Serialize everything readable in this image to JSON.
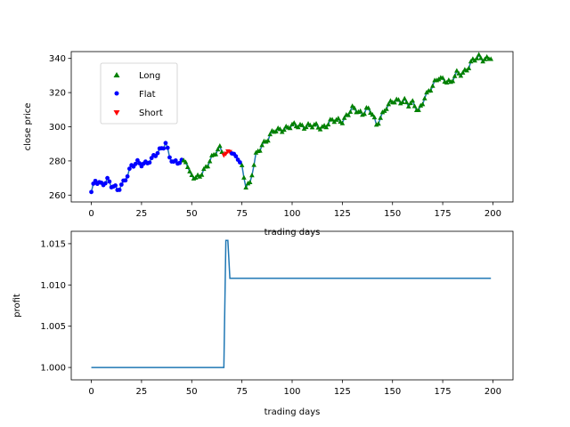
{
  "chart_data": [
    {
      "type": "scatter",
      "xlabel": "trading days",
      "ylabel": "close price",
      "xlim": [
        -10,
        210
      ],
      "ylim": [
        256,
        344
      ],
      "xticks": [
        0,
        25,
        50,
        75,
        100,
        125,
        150,
        175,
        200
      ],
      "yticks": [
        260,
        280,
        300,
        320,
        340
      ],
      "grid": false,
      "legend": "upper-left",
      "line_color": "#1f77b4",
      "anchors": [
        [
          0,
          261
        ],
        [
          2,
          268
        ],
        [
          5,
          267
        ],
        [
          8,
          269
        ],
        [
          10,
          265
        ],
        [
          13,
          263
        ],
        [
          17,
          270
        ],
        [
          20,
          276
        ],
        [
          23,
          279
        ],
        [
          27,
          279
        ],
        [
          30,
          280
        ],
        [
          33,
          285
        ],
        [
          37,
          291
        ],
        [
          39,
          282
        ],
        [
          41,
          278
        ],
        [
          44,
          280
        ],
        [
          47,
          281
        ],
        [
          49,
          272
        ],
        [
          52,
          269
        ],
        [
          56,
          275
        ],
        [
          60,
          281
        ],
        [
          64,
          288
        ],
        [
          67,
          284
        ],
        [
          69,
          286
        ],
        [
          71,
          282
        ],
        [
          73,
          282
        ],
        [
          75,
          277
        ],
        [
          77,
          266
        ],
        [
          79,
          266
        ],
        [
          82,
          283
        ],
        [
          85,
          290
        ],
        [
          88,
          293
        ],
        [
          91,
          297
        ],
        [
          95,
          299
        ],
        [
          100,
          300
        ],
        [
          105,
          301
        ],
        [
          110,
          300
        ],
        [
          115,
          300
        ],
        [
          120,
          303
        ],
        [
          125,
          304
        ],
        [
          130,
          310
        ],
        [
          135,
          308
        ],
        [
          137,
          311
        ],
        [
          140,
          307
        ],
        [
          142,
          300
        ],
        [
          144,
          306
        ],
        [
          147,
          312
        ],
        [
          150,
          314
        ],
        [
          153,
          315
        ],
        [
          156,
          316
        ],
        [
          158,
          313
        ],
        [
          160,
          313
        ],
        [
          163,
          309
        ],
        [
          166,
          318
        ],
        [
          170,
          323
        ],
        [
          173,
          329
        ],
        [
          176,
          328
        ],
        [
          179,
          325
        ],
        [
          182,
          331
        ],
        [
          185,
          332
        ],
        [
          188,
          335
        ],
        [
          190,
          338
        ],
        [
          193,
          341
        ],
        [
          196,
          340
        ],
        [
          199,
          340
        ]
      ],
      "segments": [
        {
          "from": 0,
          "to": 37,
          "position": "Flat"
        },
        {
          "from": 38,
          "to": 45,
          "position": "Flat"
        },
        {
          "from": 46,
          "to": 65,
          "position": "Long"
        },
        {
          "from": 66,
          "to": 69,
          "position": "Short"
        },
        {
          "from": 70,
          "to": 74,
          "position": "Flat"
        },
        {
          "from": 75,
          "to": 199,
          "position": "Long"
        }
      ],
      "series": [
        {
          "name": "Long",
          "marker": "triangle-up",
          "color": "#008000"
        },
        {
          "name": "Flat",
          "marker": "circle",
          "color": "#0000ff"
        },
        {
          "name": "Short",
          "marker": "triangle-down",
          "color": "#ff0000"
        }
      ]
    },
    {
      "type": "line",
      "xlabel": "trading days",
      "ylabel": "profit",
      "xlim": [
        -10,
        210
      ],
      "ylim": [
        0.9985,
        1.0165
      ],
      "xticks": [
        0,
        25,
        50,
        75,
        100,
        125,
        150,
        175,
        200
      ],
      "yticks": [
        1.0,
        1.005,
        1.01,
        1.015
      ],
      "ytick_labels": [
        "1.000",
        "1.005",
        "1.010",
        "1.015"
      ],
      "grid": false,
      "line_color": "#1f77b4",
      "points": [
        [
          0,
          1.0
        ],
        [
          66,
          1.0
        ],
        [
          67,
          1.0154
        ],
        [
          68,
          1.0154
        ],
        [
          69,
          1.0108
        ],
        [
          199,
          1.0108
        ]
      ]
    }
  ]
}
